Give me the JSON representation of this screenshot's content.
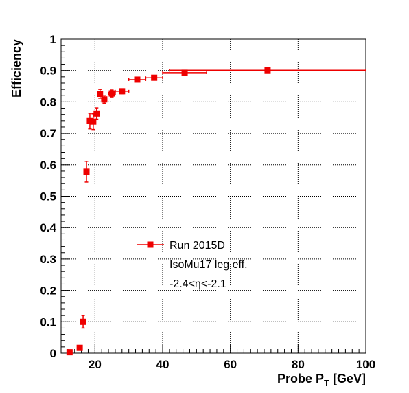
{
  "chart_data": {
    "type": "scatter",
    "xlabel": "Probe P",
    "xlabel_sub": "T",
    "xlabel_unit": " [GeV]",
    "ylabel": "Efficiency",
    "xlim": [
      10,
      100
    ],
    "ylim": [
      0,
      1
    ],
    "x_ticks": [
      20,
      40,
      60,
      80,
      100
    ],
    "y_ticks": [
      0,
      0.1,
      0.2,
      0.3,
      0.4,
      0.5,
      0.6,
      0.7,
      0.8,
      0.9,
      1
    ],
    "y_tick_labels": [
      "0",
      "0.1",
      "0.2",
      "0.3",
      "0.4",
      "0.5",
      "0.6",
      "0.7",
      "0.8",
      "0.9",
      "1"
    ],
    "x_tick_labels": [
      "20",
      "40",
      "60",
      "80",
      "100"
    ],
    "grid": true,
    "legend": {
      "placement": "center",
      "entries": [
        "Run 2015D",
        "IsoMu17 leg eff.",
        "-2.4<η<-2.1"
      ]
    },
    "series": [
      {
        "name": "Run 2015D",
        "color": "#ee0000",
        "points": [
          {
            "x": 12.5,
            "y": 0.003,
            "xerr": 0.0,
            "yerr": 0.003
          },
          {
            "x": 15.5,
            "y": 0.017,
            "xerr": 0.0,
            "yerr": 0.004
          },
          {
            "x": 16.5,
            "y": 0.1,
            "xerr": 0.5,
            "yerr": 0.02
          },
          {
            "x": 17.5,
            "y": 0.578,
            "xerr": 0.5,
            "yerr": 0.033
          },
          {
            "x": 18.5,
            "y": 0.739,
            "xerr": 0.5,
            "yerr": 0.025
          },
          {
            "x": 19.5,
            "y": 0.737,
            "xerr": 0.5,
            "yerr": 0.025
          },
          {
            "x": 20.5,
            "y": 0.763,
            "xerr": 0.5,
            "yerr": 0.018
          },
          {
            "x": 21.5,
            "y": 0.826,
            "xerr": 0.5,
            "yerr": 0.014
          },
          {
            "x": 22.75,
            "y": 0.808,
            "xerr": 0.75,
            "yerr": 0.012
          },
          {
            "x": 25.0,
            "y": 0.827,
            "xerr": 1.0,
            "yerr": 0.011
          },
          {
            "x": 28.0,
            "y": 0.834,
            "xerr": 2.0,
            "yerr": 0.008
          },
          {
            "x": 32.5,
            "y": 0.871,
            "xerr": 2.5,
            "yerr": 0.006
          },
          {
            "x": 37.5,
            "y": 0.877,
            "xerr": 2.5,
            "yerr": 0.005
          },
          {
            "x": 46.5,
            "y": 0.893,
            "xerr": 6.5,
            "yerr": 0.004
          },
          {
            "x": 71.0,
            "y": 0.901,
            "xerr": 29.0,
            "yerr": 0.004
          }
        ]
      }
    ]
  }
}
